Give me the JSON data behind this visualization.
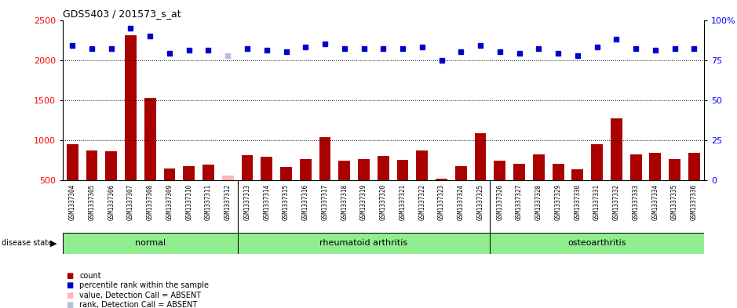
{
  "title": "GDS5403 / 201573_s_at",
  "samples": [
    "GSM1337304",
    "GSM1337305",
    "GSM1337306",
    "GSM1337307",
    "GSM1337308",
    "GSM1337309",
    "GSM1337310",
    "GSM1337311",
    "GSM1337312",
    "GSM1337313",
    "GSM1337314",
    "GSM1337315",
    "GSM1337316",
    "GSM1337317",
    "GSM1337318",
    "GSM1337319",
    "GSM1337320",
    "GSM1337321",
    "GSM1337322",
    "GSM1337323",
    "GSM1337324",
    "GSM1337325",
    "GSM1337326",
    "GSM1337327",
    "GSM1337328",
    "GSM1337329",
    "GSM1337330",
    "GSM1337331",
    "GSM1337332",
    "GSM1337333",
    "GSM1337334",
    "GSM1337335",
    "GSM1337336"
  ],
  "counts": [
    950,
    870,
    860,
    2310,
    1530,
    650,
    680,
    690,
    560,
    810,
    790,
    670,
    760,
    1040,
    740,
    760,
    800,
    750,
    870,
    520,
    680,
    1090,
    740,
    700,
    820,
    700,
    640,
    950,
    1270,
    820,
    840,
    760,
    840
  ],
  "absent_count_index": 8,
  "absent_count_value": 560,
  "percentile_ranks": [
    84,
    82,
    82,
    95,
    90,
    79,
    81,
    81,
    78,
    82,
    81,
    80,
    83,
    85,
    82,
    82,
    82,
    82,
    83,
    75,
    80,
    84,
    80,
    79,
    82,
    79,
    78,
    83,
    88,
    82,
    81,
    82,
    82
  ],
  "absent_rank_index": 8,
  "absent_rank_value": 78,
  "group_defs": [
    {
      "label": "normal",
      "start": 0,
      "end": 9
    },
    {
      "label": "rheumatoid arthritis",
      "start": 9,
      "end": 22
    },
    {
      "label": "osteoarthritis",
      "start": 22,
      "end": 33
    }
  ],
  "ylim_left": [
    500,
    2500
  ],
  "ylim_right": [
    0,
    100
  ],
  "yticks_left": [
    500,
    1000,
    1500,
    2000,
    2500
  ],
  "yticks_right": [
    0,
    25,
    50,
    75,
    100
  ],
  "ytick_right_labels": [
    "0",
    "25",
    "50",
    "75",
    "100%"
  ],
  "bar_color": "#aa0000",
  "absent_bar_color": "#ffb6b6",
  "dot_color": "#0000cc",
  "absent_dot_color": "#b8c0d8",
  "bg_color": "#ffffff",
  "tick_area_color": "#d3d3d3",
  "group_color": "#90ee90"
}
